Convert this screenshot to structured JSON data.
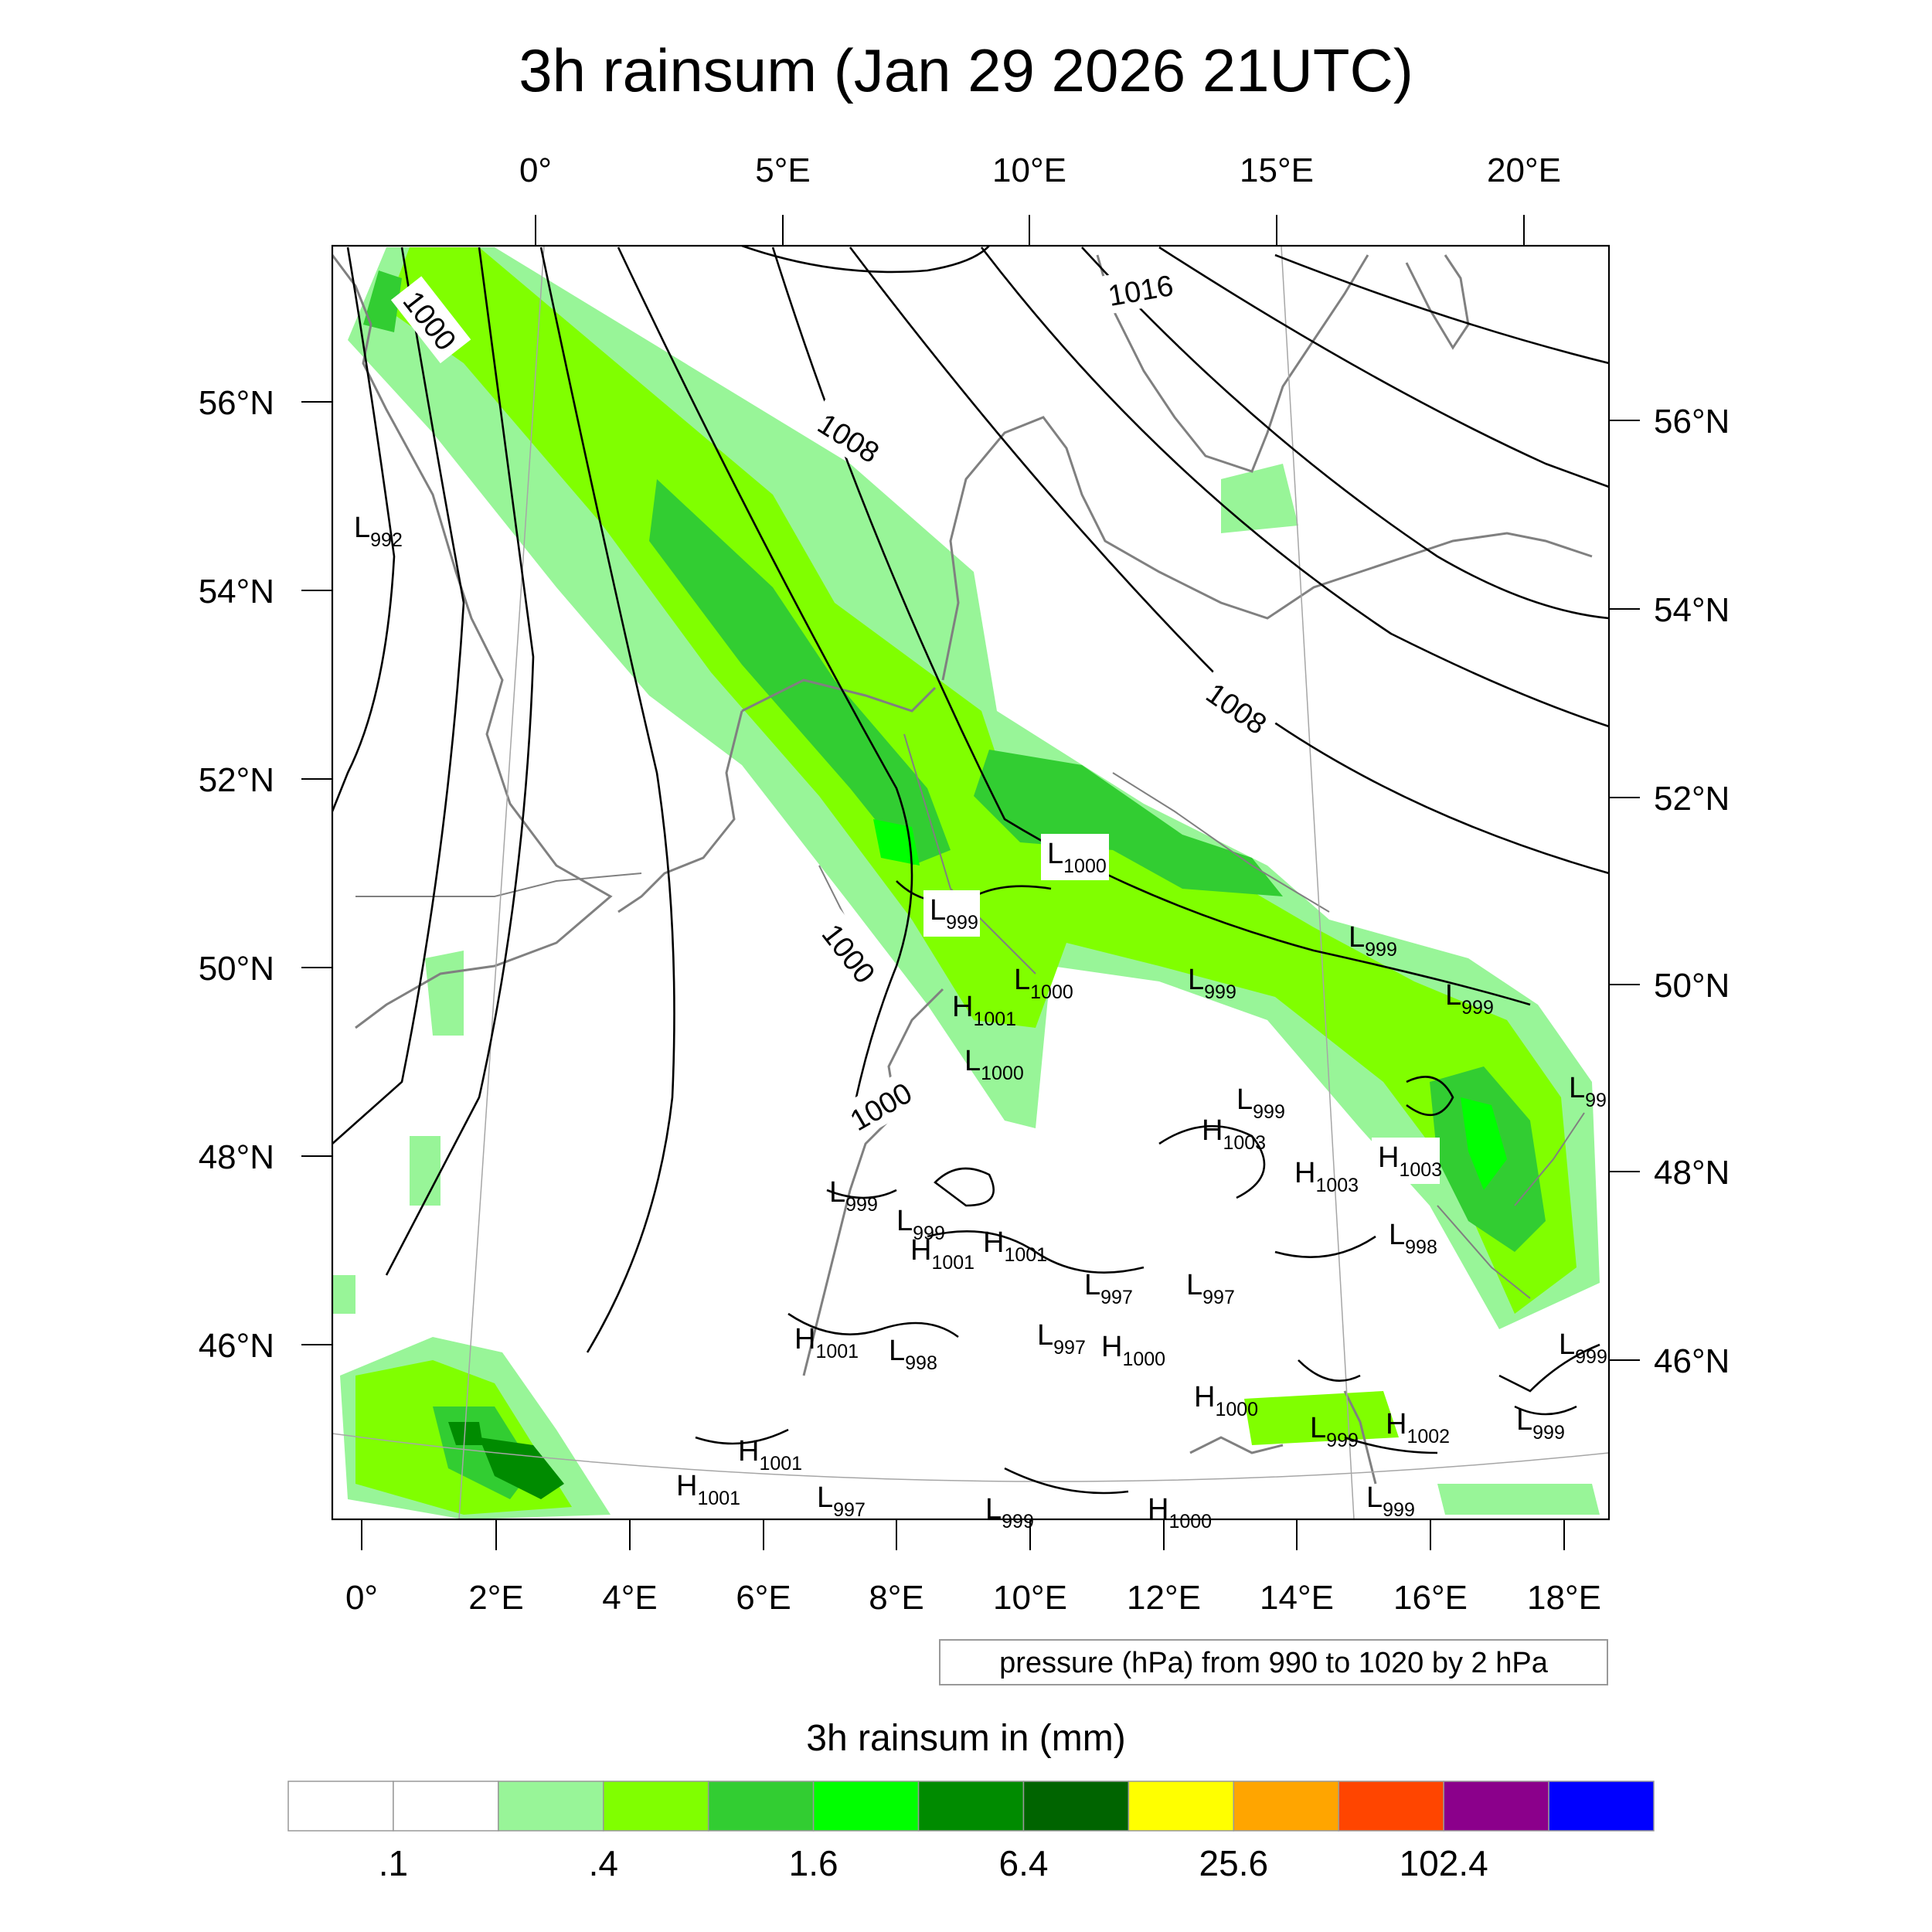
{
  "title": "3h rainsum (Jan 29 2026 21UTC)",
  "top_lon_labels": [
    "0°",
    "5°E",
    "10°E",
    "15°E",
    "20°E"
  ],
  "bottom_lon_labels": [
    "0°",
    "2°E",
    "4°E",
    "6°E",
    "8°E",
    "10°E",
    "12°E",
    "14°E",
    "16°E",
    "18°E"
  ],
  "left_lat_labels": [
    "56°N",
    "54°N",
    "52°N",
    "50°N",
    "48°N",
    "46°N"
  ],
  "right_lat_labels": [
    "56°N",
    "54°N",
    "52°N",
    "50°N",
    "48°N",
    "46°N"
  ],
  "contour_note": "pressure (hPa) from 990 to 1020 by 2 hPa",
  "contour_labels": [
    "1000",
    "1008",
    "1016",
    "1008",
    "1000",
    "1000"
  ],
  "pressure_centers": [
    {
      "type": "L",
      "value": "992"
    },
    {
      "type": "L",
      "value": "1000"
    },
    {
      "type": "L",
      "value": "999"
    },
    {
      "type": "L",
      "value": "1000"
    },
    {
      "type": "H",
      "value": "1001"
    },
    {
      "type": "L",
      "value": "1000"
    },
    {
      "type": "L",
      "value": "999"
    },
    {
      "type": "L",
      "value": "999"
    },
    {
      "type": "L",
      "value": "999"
    },
    {
      "type": "L",
      "value": "99"
    },
    {
      "type": "L",
      "value": "999"
    },
    {
      "type": "H",
      "value": "1003"
    },
    {
      "type": "H",
      "value": "1003"
    },
    {
      "type": "H",
      "value": "1003"
    },
    {
      "type": "L",
      "value": "999"
    },
    {
      "type": "L",
      "value": "999"
    },
    {
      "type": "H",
      "value": "1001"
    },
    {
      "type": "H",
      "value": "1001"
    },
    {
      "type": "L",
      "value": "998"
    },
    {
      "type": "L",
      "value": "997"
    },
    {
      "type": "L",
      "value": "997"
    },
    {
      "type": "L",
      "value": "997"
    },
    {
      "type": "H",
      "value": "1000"
    },
    {
      "type": "H",
      "value": "1001"
    },
    {
      "type": "L",
      "value": "998"
    },
    {
      "type": "H",
      "value": "1000"
    },
    {
      "type": "L",
      "value": "999"
    },
    {
      "type": "H",
      "value": "1002"
    },
    {
      "type": "L",
      "value": "999"
    },
    {
      "type": "L",
      "value": "999"
    },
    {
      "type": "H",
      "value": "1001"
    },
    {
      "type": "H",
      "value": "1001"
    },
    {
      "type": "L",
      "value": "997"
    },
    {
      "type": "L",
      "value": "999"
    },
    {
      "type": "H",
      "value": "1000"
    },
    {
      "type": "L",
      "value": "999"
    }
  ],
  "colorbar": {
    "title": "3h rainsum in (mm)",
    "colors": [
      "#ffffff",
      "#ffffff",
      "#98f598",
      "#80ff00",
      "#32cd32",
      "#00ff00",
      "#008b00",
      "#006400",
      "#ffff00",
      "#ffa500",
      "#ff4500",
      "#8b008b",
      "#0000ff"
    ],
    "labels": [
      ".1",
      ".4",
      "1.6",
      "6.4",
      "25.6",
      "102.4"
    ]
  },
  "rain_colors": {
    "light": "#98f598",
    "moderate": "#80ff00",
    "heavy": "#32cd32",
    "very_heavy": "#00ff00",
    "intense": "#008b00"
  },
  "coast_color": "#808080"
}
